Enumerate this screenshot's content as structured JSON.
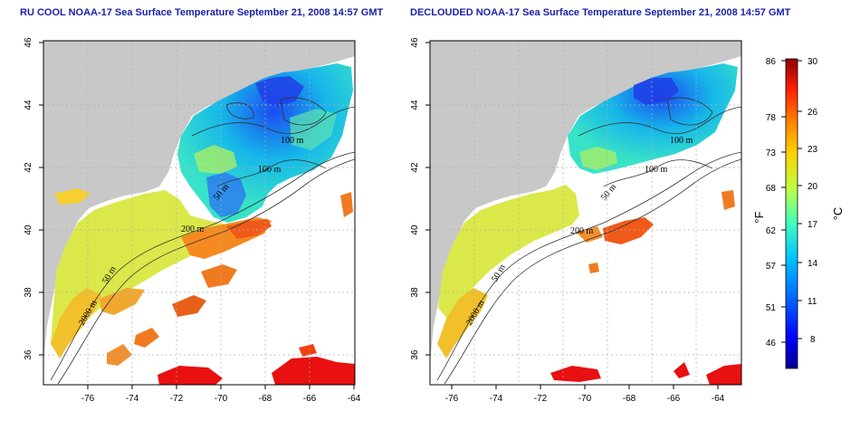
{
  "titles": {
    "left": "RU COOL NOAA-17 Sea Surface Temperature September 21, 2008 14:57 GMT",
    "right": "DECLOUDED NOAA-17 Sea Surface Temperature September 21, 2008 14:57 GMT"
  },
  "axes": {
    "lon_ticks": [
      "-76",
      "-74",
      "-72",
      "-70",
      "-68",
      "-66",
      "-64"
    ],
    "lat_ticks": [
      "46",
      "44",
      "42",
      "40",
      "38",
      "36"
    ],
    "lon_range": [
      -77,
      -63
    ],
    "lat_range": [
      35,
      46
    ]
  },
  "contours": {
    "left": [
      "100 m",
      "100 m",
      "50 m",
      "200 m",
      "50 m",
      "2000 m"
    ],
    "right": [
      "100 m",
      "100 m",
      "50 m",
      "200 m",
      "50 m",
      "2000 m"
    ]
  },
  "colorbar": {
    "fahrenheit_ticks": [
      "86",
      "78",
      "73",
      "68",
      "62",
      "57",
      "51",
      "46"
    ],
    "celsius_ticks": [
      "30",
      "26",
      "23",
      "20",
      "17",
      "14",
      "11",
      "8"
    ],
    "fahrenheit_unit": "°F",
    "celsius_unit": "°C",
    "range_c": [
      5,
      30
    ],
    "colors": [
      "#00008f",
      "#0000ff",
      "#0060ff",
      "#00bfff",
      "#40ffbf",
      "#bfff40",
      "#ffd000",
      "#ff8000",
      "#ff2000",
      "#8f0000"
    ]
  },
  "colors": {
    "land": "#c8c8c8",
    "title": "#1b22a8",
    "grid": "#b0b0b0"
  }
}
